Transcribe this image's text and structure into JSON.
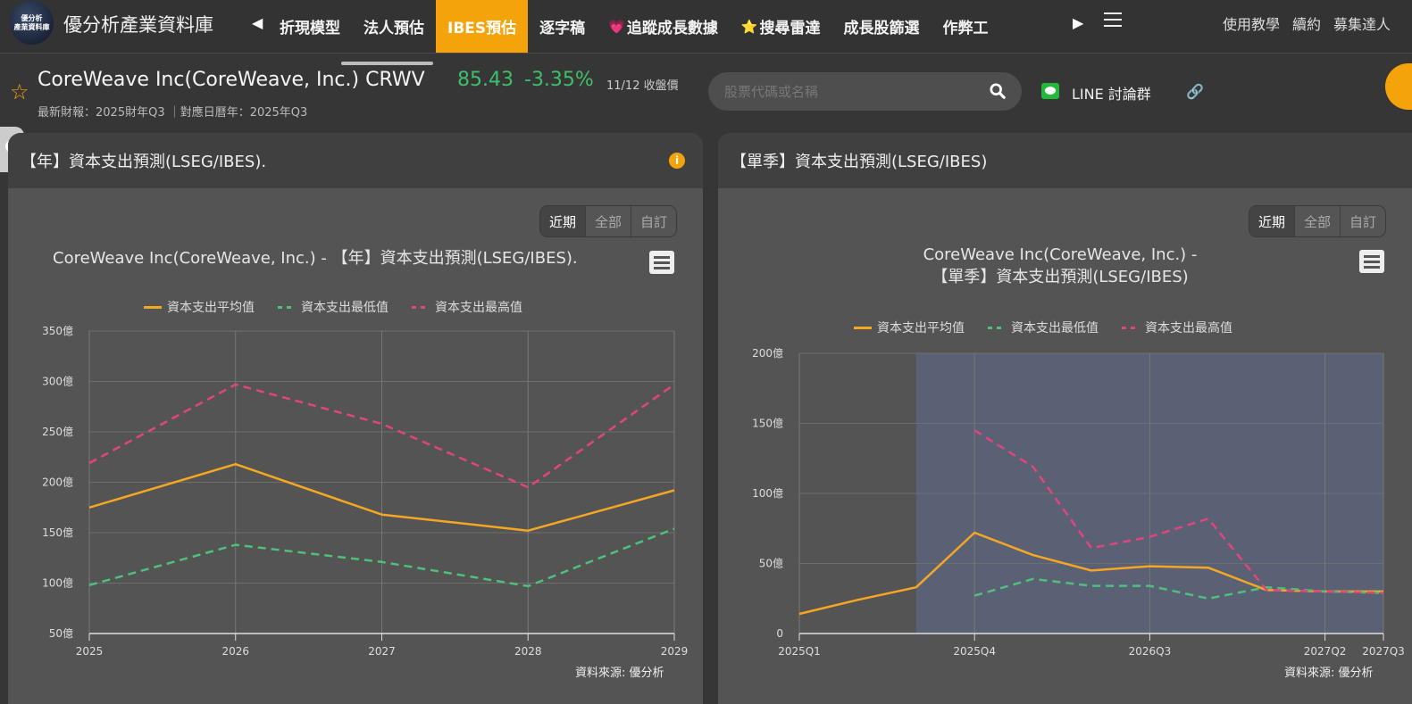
{
  "topnav": {
    "logo_line1": "優分析",
    "logo_line2": "產業資料庫",
    "brand": "優分析產業資料庫",
    "items": [
      {
        "label": "折現模型",
        "emoji": ""
      },
      {
        "label": "法人預估",
        "emoji": ""
      },
      {
        "label": "IBES預估",
        "emoji": "",
        "active": true
      },
      {
        "label": "逐字稿",
        "emoji": ""
      },
      {
        "label": "追蹤成長數據",
        "emoji": "💗"
      },
      {
        "label": "搜尋雷達",
        "emoji": "⭐"
      },
      {
        "label": "成長股篩選",
        "emoji": ""
      },
      {
        "label": "作弊工",
        "emoji": ""
      }
    ],
    "right_links": [
      "使用教學",
      "續約",
      "募集達人"
    ]
  },
  "stock": {
    "name": "CoreWeave Inc(CoreWeave, Inc.) CRWV",
    "price": "85.43",
    "change": "-3.35%",
    "price_date": "11/12 收盤價",
    "subinfo": "最新財報：2025財年Q3 ｜對應日曆年：2025年Q3"
  },
  "search": {
    "placeholder": "股票代碼或名稱",
    "value": ""
  },
  "line_group": {
    "label": "LINE 討論群"
  },
  "range_buttons": [
    "近期",
    "全部",
    "自訂"
  ],
  "panels": {
    "annual": {
      "header": "【年】資本支出預測(LSEG/IBES).",
      "chart_title": "CoreWeave Inc(CoreWeave, Inc.) - 【年】資本支出預測(LSEG/IBES).",
      "source": "資料來源: 優分析"
    },
    "quarterly": {
      "header": "【單季】資本支出預測(LSEG/IBES)",
      "chart_title_line1": "CoreWeave Inc(CoreWeave, Inc.) -",
      "chart_title_line2": "【單季】資本支出預測(LSEG/IBES)",
      "source": "資料來源: 優分析"
    }
  },
  "legend": [
    "資本支出平均值",
    "資本支出最低值",
    "資本支出最高值"
  ],
  "colors": {
    "avg": "#f5a623",
    "low": "#4fc07a",
    "high": "#e0457b",
    "accent": "#f5a30a",
    "forecast_band": "#5a6175"
  },
  "chart_data": [
    {
      "type": "line",
      "title": "CoreWeave Inc(CoreWeave, Inc.) - 【年】資本支出預測(LSEG/IBES).",
      "xlabel": "",
      "ylabel": "",
      "categories": [
        "2025",
        "2026",
        "2027",
        "2028",
        "2029"
      ],
      "y_ticks": [
        "50億",
        "100億",
        "150億",
        "200億",
        "250億",
        "300億",
        "350億"
      ],
      "ylim": [
        50,
        350
      ],
      "unit": "億",
      "grid": true,
      "legend_position": "top",
      "series": [
        {
          "name": "資本支出平均值",
          "style": "solid",
          "values": [
            175,
            218,
            168,
            152,
            192
          ]
        },
        {
          "name": "資本支出最低值",
          "style": "dashed",
          "values": [
            98,
            138,
            121,
            97,
            154
          ]
        },
        {
          "name": "資本支出最高值",
          "style": "dashed",
          "values": [
            219,
            297,
            258,
            195,
            297
          ]
        }
      ]
    },
    {
      "type": "line",
      "title": "CoreWeave Inc(CoreWeave, Inc.) - 【單季】資本支出預測(LSEG/IBES)",
      "xlabel": "",
      "ylabel": "",
      "categories": [
        "2025Q1",
        "2025Q2",
        "2025Q3",
        "2025Q4",
        "2026Q1",
        "2026Q2",
        "2026Q3",
        "2026Q4",
        "2027Q1",
        "2027Q2",
        "2027Q3"
      ],
      "x_tick_labels": [
        "2025Q1",
        "2025Q4",
        "2026Q3",
        "2027Q2",
        "2027Q3"
      ],
      "y_ticks": [
        "0",
        "50億",
        "100億",
        "150億",
        "200億"
      ],
      "ylim": [
        0,
        200
      ],
      "unit": "億",
      "grid": true,
      "legend_position": "top",
      "forecast_band_start": "2025Q3",
      "series": [
        {
          "name": "資本支出平均值",
          "style": "solid",
          "values": [
            14,
            24,
            33,
            72,
            56,
            45,
            48,
            47,
            31,
            30,
            30
          ]
        },
        {
          "name": "資本支出最低值",
          "style": "dashed",
          "values": [
            null,
            null,
            null,
            27,
            39,
            34,
            34,
            25,
            33,
            30,
            29
          ]
        },
        {
          "name": "資本支出最高值",
          "style": "dashed",
          "values": [
            null,
            null,
            null,
            145,
            119,
            61,
            69,
            82,
            31,
            30,
            29
          ]
        }
      ]
    }
  ]
}
